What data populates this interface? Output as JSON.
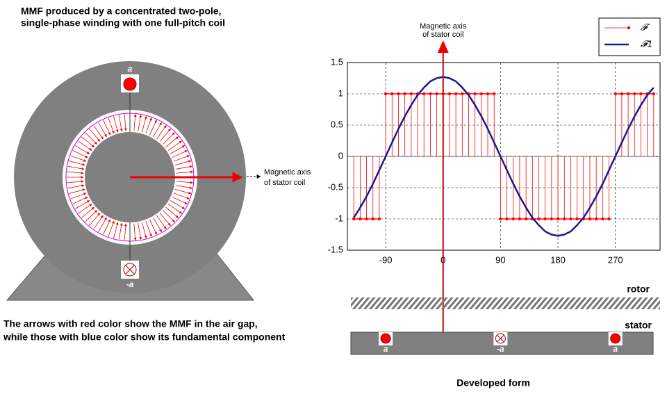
{
  "title_lines": [
    "MMF produced by a concentrated two-pole,",
    "single-phase winding with one full-pitch coil"
  ],
  "machine": {
    "top_label": "a",
    "bottom_label": "-a",
    "axis_label_lines": [
      "Magnetic axis",
      "of stator coil"
    ]
  },
  "note_lines": [
    "The arrows with red color show the MMF in the air gap,",
    "while those with blue color show its fundamental component"
  ],
  "chart_data": {
    "type": "stem",
    "x": [
      -140,
      -130,
      -120,
      -110,
      -100,
      -90,
      -80,
      -70,
      -60,
      -50,
      -40,
      -30,
      -20,
      -10,
      0,
      10,
      20,
      30,
      40,
      50,
      60,
      70,
      80,
      90,
      100,
      110,
      120,
      130,
      140,
      150,
      160,
      170,
      180,
      190,
      200,
      210,
      220,
      230,
      240,
      250,
      260,
      270,
      280,
      290,
      300,
      310,
      320,
      330
    ],
    "series": [
      {
        "name": "𝓕",
        "color": "#ff0000",
        "values": [
          -1,
          -1,
          -1,
          -1,
          -1,
          1,
          1,
          1,
          1,
          1,
          1,
          1,
          1,
          1,
          1,
          1,
          1,
          1,
          1,
          1,
          1,
          1,
          1,
          -1,
          -1,
          -1,
          -1,
          -1,
          -1,
          -1,
          -1,
          -1,
          -1,
          -1,
          -1,
          -1,
          -1,
          -1,
          -1,
          -1,
          -1,
          1,
          1,
          1,
          1,
          1,
          1,
          1
        ]
      },
      {
        "name": "𝓕1",
        "color": "#1a1a8c",
        "kind": "line",
        "values": [
          -0.98,
          -0.82,
          -0.64,
          -0.44,
          -0.22,
          0,
          0.22,
          0.44,
          0.64,
          0.82,
          0.98,
          1.1,
          1.2,
          1.25,
          1.27,
          1.25,
          1.2,
          1.1,
          0.98,
          0.82,
          0.64,
          0.44,
          0.22,
          0,
          -0.22,
          -0.44,
          -0.64,
          -0.82,
          -0.98,
          -1.1,
          -1.2,
          -1.25,
          -1.27,
          -1.25,
          -1.2,
          -1.1,
          -0.98,
          -0.82,
          -0.64,
          -0.44,
          -0.22,
          0,
          0.22,
          0.44,
          0.64,
          0.82,
          0.98,
          1.1
        ]
      }
    ],
    "xlim": [
      -150,
      340
    ],
    "ylim": [
      -1.5,
      1.5
    ],
    "xticks": [
      -90,
      0,
      90,
      180,
      270
    ],
    "yticks": [
      -1.5,
      -1,
      -0.5,
      0,
      0.5,
      1,
      1.5
    ],
    "grid": true,
    "legend": "upper right",
    "axis_label_lines": [
      "Magnetic axis",
      "of stator coil"
    ]
  },
  "developed": {
    "rotor_label": "rotor",
    "stator_label": "stator",
    "conductor_labels": [
      "a",
      "-a",
      "a"
    ],
    "caption": "Developed form"
  }
}
